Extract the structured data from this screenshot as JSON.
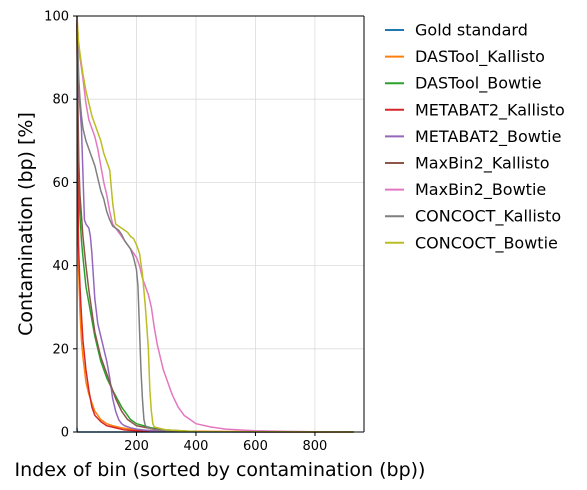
{
  "chart_data": {
    "type": "line",
    "title": "",
    "xlabel": "Index of bin (sorted by contamination (bp))",
    "ylabel": "Contamination (bp) [%]",
    "xlim": [
      0,
      965
    ],
    "ylim": [
      0,
      100
    ],
    "xticks": [
      200,
      400,
      600,
      800
    ],
    "yticks": [
      0,
      20,
      40,
      60,
      80,
      100
    ],
    "grid": true,
    "legend_position": "outside-right",
    "series": [
      {
        "name": "Gold standard",
        "color": "#1f77b4",
        "x": [
          0,
          1,
          2,
          3,
          920
        ],
        "y": [
          1,
          0,
          0,
          0,
          0
        ]
      },
      {
        "name": "DASTool_Kallisto",
        "color": "#ff7f0e",
        "x": [
          0,
          2,
          5,
          10,
          15,
          20,
          25,
          30,
          40,
          50,
          60,
          70,
          80,
          100,
          120,
          150,
          200,
          300,
          700,
          930
        ],
        "y": [
          98,
          70,
          40,
          29,
          22,
          18,
          15,
          12,
          9,
          7,
          5,
          4,
          3,
          2,
          1.5,
          1,
          0.5,
          0.2,
          0.05,
          0
        ]
      },
      {
        "name": "DASTool_Bowtie",
        "color": "#2ca02c",
        "x": [
          0,
          2,
          5,
          10,
          15,
          20,
          30,
          40,
          50,
          60,
          70,
          80,
          90,
          100,
          120,
          150,
          180,
          200,
          250,
          300,
          400,
          930
        ],
        "y": [
          98,
          78,
          62,
          52,
          46,
          42,
          35,
          31,
          27,
          23,
          20,
          17,
          15,
          13,
          10,
          6,
          3,
          2,
          1,
          0.5,
          0.1,
          0
        ]
      },
      {
        "name": "METABAT2_Kallisto",
        "color": "#d62728",
        "x": [
          0,
          2,
          5,
          10,
          15,
          20,
          30,
          40,
          50,
          60,
          80,
          100,
          130,
          160,
          200,
          300,
          500,
          930
        ],
        "y": [
          99,
          75,
          45,
          35,
          28,
          22,
          15,
          10,
          6,
          4,
          2.5,
          1.5,
          1,
          0.5,
          0.3,
          0.1,
          0.05,
          0
        ]
      },
      {
        "name": "METABAT2_Bowtie",
        "color": "#9467bd",
        "x": [
          0,
          3,
          6,
          10,
          15,
          20,
          25,
          30,
          35,
          40,
          45,
          50,
          60,
          70,
          80,
          90,
          100,
          110,
          120,
          130,
          140,
          150,
          160,
          180,
          200,
          220,
          250,
          300,
          400,
          930
        ],
        "y": [
          100,
          87,
          82,
          78,
          73,
          62,
          51,
          50,
          49.5,
          49,
          47,
          43,
          32,
          26,
          23,
          20,
          17,
          13,
          8,
          5,
          3,
          2,
          1.5,
          1,
          0.7,
          0.5,
          0.3,
          0.1,
          0.05,
          0
        ]
      },
      {
        "name": "MaxBin2_Kallisto",
        "color": "#8c564b",
        "x": [
          0,
          3,
          6,
          10,
          15,
          20,
          30,
          40,
          50,
          60,
          70,
          80,
          90,
          100,
          110,
          120,
          130,
          140,
          150,
          170,
          190,
          200,
          250,
          300,
          400,
          930
        ],
        "y": [
          99,
          80,
          65,
          57,
          52,
          47,
          40,
          34,
          29,
          24,
          21,
          18,
          16,
          14,
          12,
          10,
          8,
          6.5,
          5,
          3,
          2,
          1.5,
          0.8,
          0.4,
          0.1,
          0
        ]
      },
      {
        "name": "MaxBin2_Bowtie",
        "color": "#e377c2",
        "x": [
          0,
          5,
          10,
          20,
          30,
          40,
          50,
          60,
          70,
          80,
          90,
          100,
          110,
          120,
          130,
          140,
          150,
          160,
          170,
          180,
          190,
          200,
          210,
          220,
          230,
          240,
          250,
          260,
          270,
          280,
          290,
          300,
          320,
          340,
          360,
          380,
          400,
          450,
          500,
          600,
          700,
          800,
          930
        ],
        "y": [
          100,
          93,
          90,
          85,
          79,
          75,
          73,
          71,
          68,
          64,
          60,
          57,
          53,
          50,
          49,
          48,
          47,
          46,
          45,
          44,
          43,
          42,
          40,
          37,
          35,
          33,
          30,
          25,
          21,
          18,
          15,
          13,
          9,
          6,
          4,
          3,
          2,
          1.2,
          0.7,
          0.3,
          0.15,
          0.05,
          0
        ]
      },
      {
        "name": "CONCOCT_Kallisto",
        "color": "#7f7f7f",
        "x": [
          0,
          3,
          6,
          10,
          15,
          20,
          30,
          40,
          50,
          60,
          70,
          80,
          90,
          100,
          110,
          120,
          130,
          140,
          150,
          160,
          170,
          180,
          190,
          200,
          205,
          210,
          215,
          220,
          225,
          230,
          240,
          260,
          300,
          400,
          930
        ],
        "y": [
          100,
          92,
          85,
          80,
          76,
          73,
          70,
          68,
          66,
          64,
          61,
          58,
          56,
          53,
          51,
          49.5,
          49,
          48.5,
          47.5,
          46,
          45,
          44,
          42,
          39,
          35,
          25,
          15,
          8,
          3,
          1.5,
          1,
          0.6,
          0.3,
          0.1,
          0
        ]
      },
      {
        "name": "CONCOCT_Bowtie",
        "color": "#bcbd22",
        "x": [
          0,
          5,
          10,
          20,
          30,
          40,
          50,
          60,
          70,
          80,
          90,
          100,
          110,
          120,
          130,
          140,
          150,
          160,
          170,
          180,
          190,
          200,
          210,
          220,
          230,
          235,
          240,
          245,
          250,
          255,
          260,
          300,
          400,
          930
        ],
        "y": [
          100,
          94,
          91,
          86,
          82,
          79,
          76,
          74,
          72,
          70,
          67,
          65,
          63,
          55,
          50,
          49.5,
          49,
          48.5,
          48,
          47,
          46.5,
          45,
          43,
          38,
          30,
          25,
          20,
          10,
          5,
          2,
          1.2,
          0.5,
          0.1,
          0
        ]
      }
    ]
  }
}
